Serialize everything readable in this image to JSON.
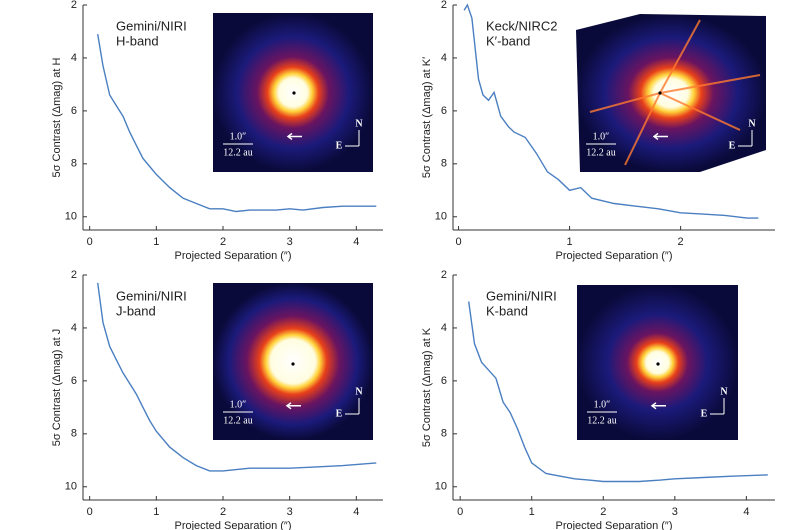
{
  "chart_data": [
    {
      "type": "line",
      "annotation": [
        "Gemini/NIRI",
        "H-band"
      ],
      "ylabel": "5σ Contrast (Δmag) at H",
      "xlabel": "Projected Separation (″)",
      "x": [
        0.12,
        0.2,
        0.3,
        0.4,
        0.5,
        0.6,
        0.7,
        0.8,
        0.9,
        1.0,
        1.2,
        1.4,
        1.6,
        1.8,
        2.0,
        2.2,
        2.4,
        2.6,
        2.8,
        3.0,
        3.2,
        3.5,
        3.8,
        4.0,
        4.3
      ],
      "values": [
        3.1,
        4.3,
        5.4,
        5.8,
        6.2,
        6.8,
        7.3,
        7.8,
        8.1,
        8.4,
        8.9,
        9.3,
        9.5,
        9.7,
        9.7,
        9.8,
        9.75,
        9.75,
        9.75,
        9.7,
        9.75,
        9.65,
        9.6,
        9.6,
        9.6
      ],
      "color": "#4a7fc1",
      "xlim": [
        -0.1,
        4.4
      ],
      "xticks": [
        0,
        1,
        2,
        3,
        4
      ],
      "ylim": [
        2,
        10.5
      ],
      "yticks": [
        2,
        4,
        6,
        8,
        10
      ],
      "y_inverted": true,
      "inset": {
        "scale": "1.0″",
        "scale_au": "12.2 au",
        "north": "N",
        "east": "E"
      }
    },
    {
      "type": "line",
      "annotation": [
        "Keck/NIRC2",
        "K′-band"
      ],
      "ylabel": "5σ Contrast (Δmag) at K′",
      "xlabel": "Projected Separation (″)",
      "x": [
        0.05,
        0.08,
        0.12,
        0.18,
        0.22,
        0.27,
        0.32,
        0.38,
        0.45,
        0.5,
        0.6,
        0.7,
        0.8,
        0.9,
        1.0,
        1.1,
        1.2,
        1.4,
        1.6,
        1.8,
        2.0,
        2.2,
        2.4,
        2.6,
        2.7
      ],
      "values": [
        2.2,
        2.0,
        2.5,
        4.8,
        5.4,
        5.6,
        5.3,
        6.2,
        6.6,
        6.8,
        7.0,
        7.6,
        8.3,
        8.6,
        9.0,
        8.9,
        9.3,
        9.5,
        9.6,
        9.7,
        9.85,
        9.9,
        9.95,
        10.05,
        10.05
      ],
      "color": "#4a7fc1",
      "xlim": [
        -0.05,
        2.85
      ],
      "xticks": [
        0,
        1,
        2
      ],
      "ylim": [
        2,
        10.5
      ],
      "yticks": [
        2,
        4,
        6,
        8,
        10
      ],
      "y_inverted": true,
      "inset": {
        "scale": "1.0″",
        "scale_au": "12.2 au",
        "north": "N",
        "east": "E"
      }
    },
    {
      "type": "line",
      "annotation": [
        "Gemini/NIRI",
        "J-band"
      ],
      "ylabel": "5σ Contrast (Δmag) at J",
      "xlabel": "Projected Separation (″)",
      "x": [
        0.12,
        0.2,
        0.3,
        0.4,
        0.5,
        0.6,
        0.7,
        0.8,
        0.9,
        1.0,
        1.2,
        1.4,
        1.6,
        1.8,
        2.0,
        2.2,
        2.4,
        2.6,
        2.8,
        3.0,
        3.4,
        3.8,
        4.3
      ],
      "values": [
        2.3,
        3.8,
        4.7,
        5.2,
        5.7,
        6.1,
        6.5,
        7.0,
        7.5,
        7.9,
        8.5,
        8.9,
        9.2,
        9.4,
        9.4,
        9.35,
        9.3,
        9.3,
        9.3,
        9.3,
        9.25,
        9.2,
        9.1
      ],
      "color": "#4a7fc1",
      "xlim": [
        -0.1,
        4.4
      ],
      "xticks": [
        0,
        1,
        2,
        3,
        4
      ],
      "ylim": [
        2,
        10.5
      ],
      "yticks": [
        2,
        4,
        6,
        8,
        10
      ],
      "y_inverted": true,
      "inset": {
        "scale": "1.0″",
        "scale_au": "12.2 au",
        "north": "N",
        "east": "E"
      }
    },
    {
      "type": "line",
      "annotation": [
        "Gemini/NIRI",
        "K-band"
      ],
      "ylabel": "5σ Contrast (Δmag) at K",
      "xlabel": "Projected Separation (″)",
      "x": [
        0.12,
        0.2,
        0.3,
        0.4,
        0.5,
        0.6,
        0.7,
        0.8,
        0.9,
        1.0,
        1.2,
        1.4,
        1.6,
        1.8,
        2.0,
        2.2,
        2.5,
        2.8,
        3.0,
        3.4,
        3.8,
        4.3
      ],
      "values": [
        3.0,
        4.6,
        5.3,
        5.6,
        5.9,
        6.8,
        7.2,
        7.8,
        8.5,
        9.1,
        9.5,
        9.6,
        9.7,
        9.75,
        9.8,
        9.8,
        9.8,
        9.75,
        9.7,
        9.65,
        9.6,
        9.55
      ],
      "color": "#4a7fc1",
      "xlim": [
        -0.1,
        4.4
      ],
      "xticks": [
        0,
        1,
        2,
        3,
        4
      ],
      "ylim": [
        2,
        10.5
      ],
      "yticks": [
        2,
        4,
        6,
        8,
        10
      ],
      "y_inverted": true,
      "inset": {
        "scale": "1.0″",
        "scale_au": "12.2 au",
        "north": "N",
        "east": "E"
      }
    }
  ]
}
